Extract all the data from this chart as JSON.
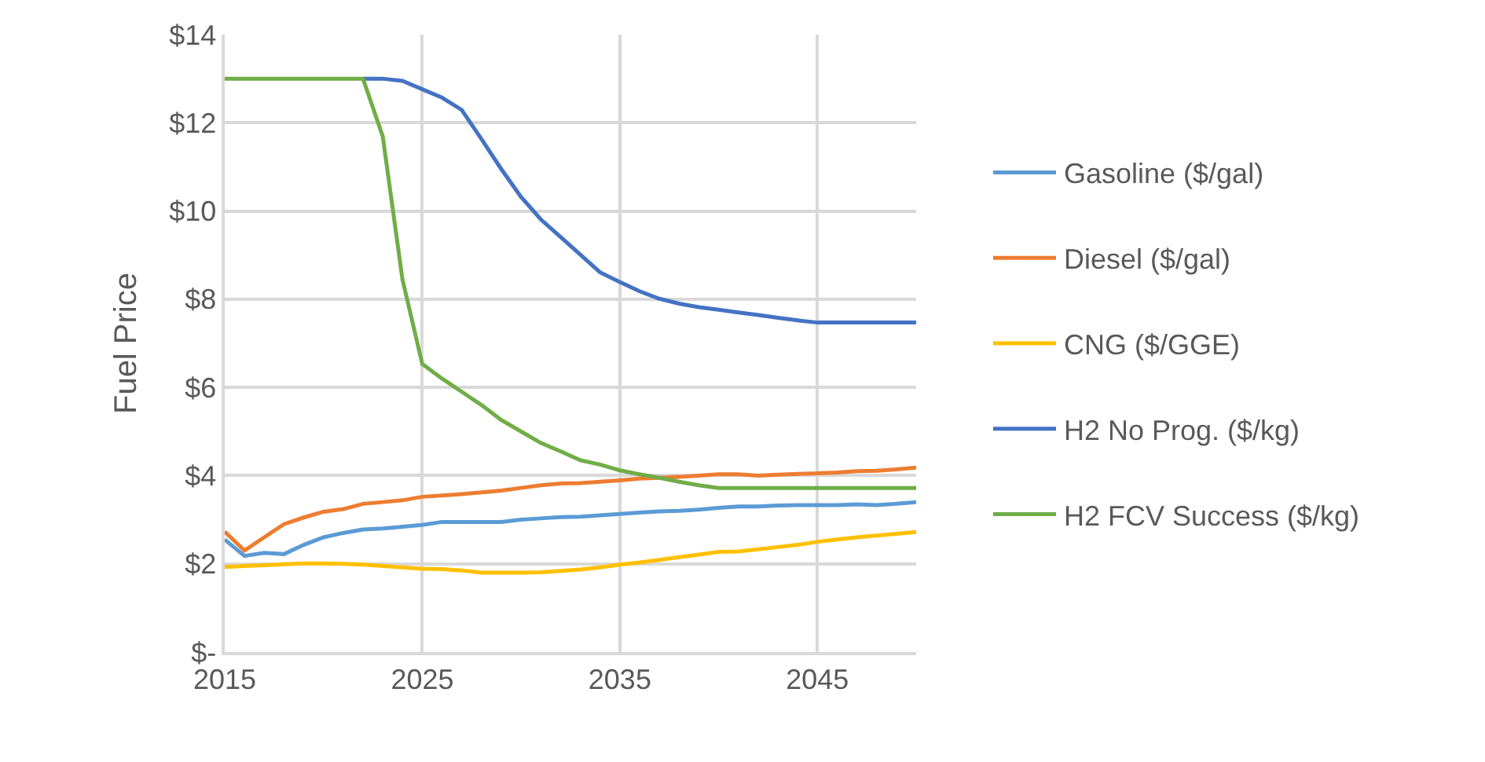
{
  "chart_data": {
    "type": "line",
    "ylabel": "Fuel Price",
    "x": [
      2015,
      2016,
      2017,
      2018,
      2019,
      2020,
      2021,
      2022,
      2023,
      2024,
      2025,
      2026,
      2027,
      2028,
      2029,
      2030,
      2031,
      2032,
      2033,
      2034,
      2035,
      2036,
      2037,
      2038,
      2039,
      2040,
      2041,
      2042,
      2043,
      2044,
      2045,
      2046,
      2047,
      2048,
      2049,
      2050
    ],
    "series": [
      {
        "name": "Gasoline ($/gal)",
        "color": "#5b9bd5",
        "values": [
          2.55,
          2.18,
          2.25,
          2.22,
          2.43,
          2.6,
          2.7,
          2.78,
          2.8,
          2.84,
          2.88,
          2.95,
          2.95,
          2.95,
          2.95,
          3.0,
          3.03,
          3.06,
          3.07,
          3.1,
          3.13,
          3.16,
          3.19,
          3.2,
          3.23,
          3.27,
          3.3,
          3.3,
          3.32,
          3.33,
          3.33,
          3.33,
          3.35,
          3.33,
          3.36,
          3.4
        ]
      },
      {
        "name": "Diesel ($/gal)",
        "color": "#ed7d31",
        "values": [
          2.73,
          2.3,
          2.6,
          2.9,
          3.05,
          3.18,
          3.24,
          3.36,
          3.4,
          3.44,
          3.52,
          3.55,
          3.58,
          3.62,
          3.66,
          3.72,
          3.78,
          3.82,
          3.83,
          3.86,
          3.89,
          3.93,
          3.95,
          3.97,
          4.0,
          4.03,
          4.03,
          4.0,
          4.02,
          4.04,
          4.05,
          4.07,
          4.1,
          4.11,
          4.14,
          4.18
        ]
      },
      {
        "name": "CNG ($/GGE)",
        "color": "#ffc000",
        "values": [
          1.93,
          1.95,
          1.97,
          1.99,
          2.01,
          2.01,
          2.0,
          1.98,
          1.95,
          1.92,
          1.89,
          1.88,
          1.85,
          1.8,
          1.8,
          1.8,
          1.81,
          1.84,
          1.87,
          1.92,
          1.98,
          2.03,
          2.09,
          2.15,
          2.21,
          2.27,
          2.28,
          2.33,
          2.38,
          2.43,
          2.5,
          2.55,
          2.6,
          2.64,
          2.68,
          2.72
        ]
      },
      {
        "name": "H2 No Prog. ($/kg)",
        "color": "#4472c4",
        "values": [
          null,
          null,
          null,
          null,
          null,
          null,
          null,
          13.0,
          13.0,
          12.95,
          12.76,
          12.57,
          12.29,
          11.63,
          10.95,
          10.32,
          9.81,
          9.41,
          9.01,
          8.61,
          8.39,
          8.18,
          8.01,
          7.9,
          7.82,
          7.76,
          7.7,
          7.64,
          7.58,
          7.52,
          7.47,
          7.47,
          7.47,
          7.47,
          7.47,
          7.47
        ]
      },
      {
        "name": "H2 FCV Success ($/kg)",
        "color": "#70ad47",
        "values": [
          13.0,
          13.0,
          13.0,
          13.0,
          13.0,
          13.0,
          13.0,
          13.0,
          11.69,
          8.44,
          6.53,
          6.2,
          5.9,
          5.6,
          5.26,
          5.0,
          4.74,
          4.55,
          4.35,
          4.25,
          4.12,
          4.03,
          3.95,
          3.86,
          3.78,
          3.72,
          3.72,
          3.72,
          3.72,
          3.72,
          3.72,
          3.72,
          3.72,
          3.72,
          3.72,
          3.72
        ]
      }
    ],
    "xlim": [
      2015,
      2050
    ],
    "xticks": [
      2015,
      2025,
      2035,
      2045
    ],
    "ylim": [
      0,
      14
    ],
    "yticks": [
      {
        "value": 0,
        "label": "$-"
      },
      {
        "value": 2,
        "label": "$2"
      },
      {
        "value": 4,
        "label": "$4"
      },
      {
        "value": 6,
        "label": "$6"
      },
      {
        "value": 8,
        "label": "$8"
      },
      {
        "value": 10,
        "label": "$10"
      },
      {
        "value": 12,
        "label": "$12"
      },
      {
        "value": 14,
        "label": "$14"
      }
    ],
    "grid": true,
    "legend": "right",
    "marker": "none",
    "line_style": "solid"
  }
}
